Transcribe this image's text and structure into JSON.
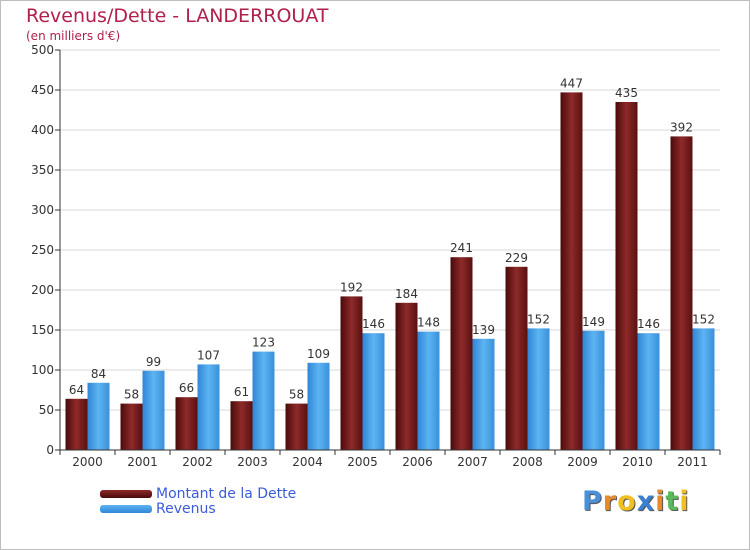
{
  "chart_data": {
    "type": "bar",
    "title": "Revenus/Dette - LANDERROUAT",
    "subtitle": "(en milliers d'€)",
    "categories": [
      "2000",
      "2001",
      "2002",
      "2003",
      "2004",
      "2005",
      "2006",
      "2007",
      "2008",
      "2009",
      "2010",
      "2011"
    ],
    "series": [
      {
        "name": "Montant de la Dette",
        "color": "#7a1f1f",
        "values": [
          64,
          58,
          66,
          61,
          58,
          192,
          184,
          241,
          229,
          447,
          435,
          392
        ]
      },
      {
        "name": "Revenus",
        "color": "#4aa3e8",
        "values": [
          84,
          99,
          107,
          123,
          109,
          146,
          148,
          139,
          152,
          149,
          146,
          152
        ]
      }
    ],
    "ylim": [
      0,
      500
    ],
    "yticks": [
      0,
      50,
      100,
      150,
      200,
      250,
      300,
      350,
      400,
      450,
      500
    ],
    "grid": true,
    "legend_position": "bottom-left"
  },
  "brand": {
    "letters": [
      {
        "ch": "P",
        "color": "#4a90d9"
      },
      {
        "ch": "r",
        "color": "#e8892a"
      },
      {
        "ch": "o",
        "color": "#f0c020"
      },
      {
        "ch": "x",
        "color": "#3a7fd0"
      },
      {
        "ch": "i",
        "color": "#e8892a"
      },
      {
        "ch": "t",
        "color": "#5cb85c"
      },
      {
        "ch": "i",
        "color": "#f0c020"
      }
    ]
  }
}
